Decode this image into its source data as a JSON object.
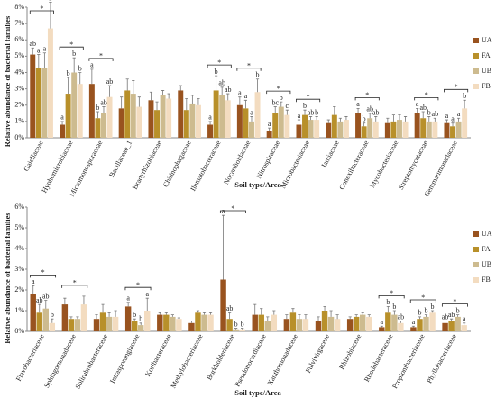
{
  "chart_data": [
    {
      "type": "bar",
      "ylabel": "Relative abundance of bacterial families",
      "xlabel": "Soil type/Area",
      "categories": [
        "Gaiellaceae",
        "Hyphomicrobiaceae",
        "Micromonosporaceae",
        "Bacillaceae_1",
        "Bradyrhizobiaceae",
        "Chitinophagaceae",
        "Ilumatobacteraceae",
        "Nocardioidaceae",
        "Nitrospiraceae",
        "Microbacteriaceae",
        "Iamiaceae",
        "Conexibacteraceae",
        "Mycobacteriaceae",
        "Streptomycetaceae",
        "Gemmatimonadaceae"
      ],
      "series": [
        {
          "name": "UA",
          "color": "#99531f",
          "values": [
            5.1,
            0.8,
            3.3,
            1.8,
            2.3,
            2.9,
            0.8,
            2.0,
            0.4,
            0.8,
            0.9,
            1.5,
            0.9,
            1.5,
            0.9
          ],
          "errors": [
            0.4,
            0.2,
            0.9,
            0.7,
            0.5,
            0.3,
            0.2,
            0.5,
            0.2,
            0.3,
            0.2,
            0.3,
            0.3,
            0.3,
            0.2
          ],
          "letters": [
            "ab",
            "a",
            "a",
            null,
            null,
            null,
            "a",
            "a",
            "a",
            "a",
            null,
            "a",
            null,
            "a",
            "a"
          ]
        },
        {
          "name": "FA",
          "color": "#b8902a",
          "values": [
            4.3,
            2.7,
            1.2,
            2.9,
            1.7,
            1.7,
            2.9,
            1.8,
            1.5,
            1.4,
            1.4,
            0.7,
            1.0,
            1.2,
            0.7
          ],
          "errors": [
            0.8,
            1.0,
            0.4,
            0.7,
            0.5,
            0.7,
            0.9,
            0.5,
            0.4,
            0.3,
            0.5,
            0.2,
            0.4,
            0.4,
            0.2
          ],
          "letters": [
            "a",
            "b",
            "b",
            null,
            null,
            null,
            "b",
            "a",
            "bc",
            "b",
            null,
            "b",
            null,
            "ab",
            "a"
          ]
        },
        {
          "name": "UB",
          "color": "#cdbb8f",
          "values": [
            4.3,
            4.0,
            1.5,
            2.7,
            2.6,
            2.1,
            2.6,
            1.0,
            1.9,
            1.1,
            1.0,
            1.2,
            1.1,
            1.0,
            1.0
          ],
          "errors": [
            0.9,
            0.9,
            0.4,
            0.8,
            0.3,
            0.5,
            0.5,
            0.3,
            0.3,
            0.2,
            0.2,
            0.3,
            0.3,
            0.3,
            0.2
          ],
          "letters": [
            "a",
            "b",
            "ab",
            null,
            null,
            null,
            "ab",
            "a",
            "b",
            "ab",
            null,
            "ab",
            null,
            "b",
            "a"
          ]
        },
        {
          "name": "FB",
          "color": "#f3dcc0",
          "values": [
            6.7,
            3.3,
            2.5,
            1.9,
            2.4,
            2.0,
            2.3,
            2.8,
            1.4,
            1.1,
            1.1,
            1.0,
            1.0,
            1.0,
            1.8
          ],
          "errors": [
            1.6,
            0.7,
            0.7,
            0.6,
            0.3,
            0.4,
            0.4,
            0.8,
            0.3,
            0.2,
            0.2,
            0.3,
            0.3,
            0.2,
            0.5
          ],
          "letters": [
            "b",
            "b",
            "ab",
            null,
            null,
            null,
            "ab",
            "b",
            "c",
            "b",
            null,
            "ab",
            null,
            "ab",
            "b"
          ]
        }
      ],
      "significant": [
        true,
        true,
        true,
        false,
        false,
        false,
        true,
        true,
        true,
        true,
        false,
        true,
        false,
        true,
        true
      ],
      "significance_label": "*",
      "ylim": [
        0,
        8
      ],
      "yticks": [
        {
          "value": 0,
          "label": "0%"
        },
        {
          "value": 1,
          "label": "1%"
        },
        {
          "value": 2,
          "label": "2%"
        },
        {
          "value": 3,
          "label": "3%"
        },
        {
          "value": 4,
          "label": "4%"
        },
        {
          "value": 5,
          "label": "5%"
        },
        {
          "value": 6,
          "label": "6%"
        },
        {
          "value": 7,
          "label": "7%"
        },
        {
          "value": 8,
          "label": "8%"
        }
      ],
      "legend": "right"
    },
    {
      "type": "bar",
      "ylabel": "Relative abundance of bacterial families",
      "xlabel": "Soil type/Area",
      "categories": [
        "Flavobacteriaceae",
        "Sphingomonadaceae",
        "Solirubrobacteraceae",
        "Intrasporangiaceae",
        "Koribacteraceae",
        "Methylobacteriaceae",
        "Burkholderiaceae",
        "Pseudonocardiaceae",
        "Xanthomonadaceae",
        "Fulvivirgaceae",
        "Rhizobiaceae",
        "Rhodobacteraceae",
        "Propionibacteriaceae",
        "Phyllobacteriaceae"
      ],
      "series": [
        {
          "name": "UA",
          "color": "#99531f",
          "values": [
            1.8,
            1.3,
            0.6,
            1.2,
            0.8,
            0.4,
            2.5,
            0.8,
            0.6,
            0.5,
            0.6,
            0.2,
            0.2,
            0.4
          ],
          "errors": [
            0.4,
            0.3,
            0.2,
            0.2,
            0.1,
            0.1,
            3.1,
            0.5,
            0.2,
            0.2,
            0.1,
            0.05,
            0.05,
            0.1
          ],
          "letters": [
            "a",
            null,
            null,
            "a",
            null,
            null,
            "a",
            null,
            null,
            null,
            null,
            "a",
            "a",
            "ab"
          ]
        },
        {
          "name": "FA",
          "color": "#b8902a",
          "values": [
            0.9,
            0.6,
            0.9,
            0.5,
            0.8,
            0.9,
            0.6,
            0.8,
            0.9,
            1.0,
            0.7,
            0.9,
            0.6,
            0.5
          ],
          "errors": [
            0.4,
            0.1,
            0.4,
            0.1,
            0.1,
            0.1,
            0.3,
            0.3,
            0.2,
            0.2,
            0.1,
            0.3,
            0.1,
            0.1
          ],
          "letters": [
            "ab",
            null,
            null,
            "b",
            null,
            null,
            "ab",
            null,
            null,
            null,
            null,
            "b",
            "b",
            "ab"
          ]
        },
        {
          "name": "UB",
          "color": "#cdbb8f",
          "values": [
            1.1,
            0.6,
            0.7,
            0.3,
            0.7,
            0.8,
            0.1,
            0.5,
            0.6,
            0.7,
            0.8,
            0.8,
            0.7,
            0.7
          ],
          "errors": [
            0.4,
            0.1,
            0.2,
            0.1,
            0.1,
            0.1,
            0.05,
            0.2,
            0.2,
            0.3,
            0.1,
            0.2,
            0.1,
            0.1
          ],
          "letters": [
            "ab",
            null,
            null,
            "b",
            null,
            null,
            "b",
            null,
            null,
            null,
            null,
            "b",
            "b",
            "b"
          ]
        },
        {
          "name": "FB",
          "color": "#f3dcc0",
          "values": [
            0.4,
            1.3,
            0.7,
            1.0,
            0.6,
            0.8,
            0.1,
            0.8,
            0.6,
            0.6,
            0.7,
            0.4,
            0.9,
            0.3
          ],
          "errors": [
            0.2,
            0.4,
            0.3,
            0.6,
            0.05,
            0.1,
            0.05,
            0.2,
            0.2,
            0.2,
            0.1,
            0.1,
            0.1,
            0.1
          ],
          "letters": [
            "b",
            null,
            null,
            "a",
            null,
            null,
            "b",
            null,
            null,
            null,
            null,
            "ab",
            "b",
            "a"
          ]
        }
      ],
      "significant": [
        true,
        true,
        false,
        true,
        false,
        false,
        true,
        false,
        false,
        false,
        false,
        true,
        true,
        true
      ],
      "significance_label": "*",
      "ylim": [
        0,
        6
      ],
      "yticks": [
        {
          "value": 0,
          "label": "0%"
        },
        {
          "value": 1,
          "label": "1%"
        },
        {
          "value": 2,
          "label": "2%"
        },
        {
          "value": 3,
          "label": "3%"
        },
        {
          "value": 4,
          "label": "4%"
        },
        {
          "value": 5,
          "label": "5%"
        },
        {
          "value": 6,
          "label": "6%"
        }
      ],
      "legend": "right"
    }
  ]
}
